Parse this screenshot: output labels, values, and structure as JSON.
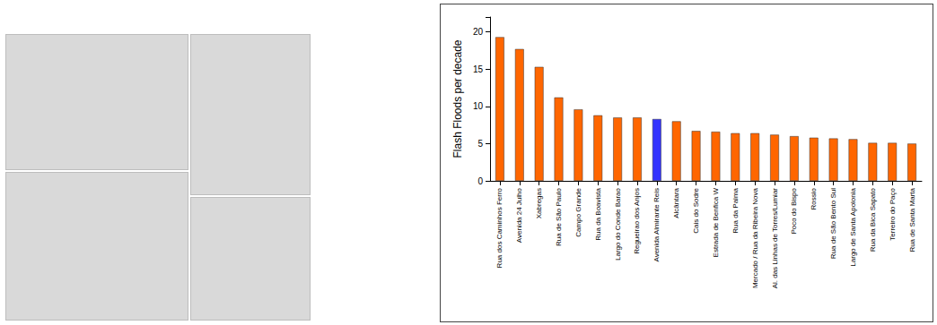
{
  "chart_data": {
    "type": "bar",
    "y_label": "Flash Floods per decade",
    "categories": [
      "Rua dos Caminhos Ferro",
      "Avenida 24 Julho",
      "Xabregas",
      "Rua de São Paulo",
      "Campo Grande",
      "Rua da Boavista",
      "Largo do Conde Barao",
      "Regueirao dos Anjos",
      "Avenida Almirante Reis",
      "Alcântara",
      "Cais do Sodre",
      "Estrada de Benfica W",
      "Rua da Palma",
      "Mercado / Rua da Ribeira Nova",
      "Al. das Linhas de Torres/Lumiar",
      "Poco do Bispo",
      "Rossio",
      "Rua de São Bento Sul",
      "Largo de Santa Apolonia",
      "Rua da Bica Sapato",
      "Terreiro do Paço",
      "Rua de Santa Marta"
    ],
    "values": [
      19.3,
      17.7,
      15.3,
      11.2,
      9.6,
      8.8,
      8.5,
      8.5,
      8.3,
      8.0,
      6.7,
      6.6,
      6.4,
      6.4,
      6.2,
      6.0,
      5.8,
      5.7,
      5.6,
      5.1,
      5.1,
      5.0
    ],
    "colors": [
      "#ff6600",
      "#ff6600",
      "#ff6600",
      "#ff6600",
      "#ff6600",
      "#ff6600",
      "#ff6600",
      "#ff6600",
      "#3333ff",
      "#ff6600",
      "#ff6600",
      "#ff6600",
      "#ff6600",
      "#ff6600",
      "#ff6600",
      "#ff6600",
      "#ff6600",
      "#ff6600",
      "#ff6600",
      "#ff6600",
      "#ff6600",
      "#ff6600"
    ],
    "ylim": [
      0,
      22
    ],
    "yticks": [
      0,
      5,
      10,
      15,
      20
    ],
    "grid": false
  }
}
